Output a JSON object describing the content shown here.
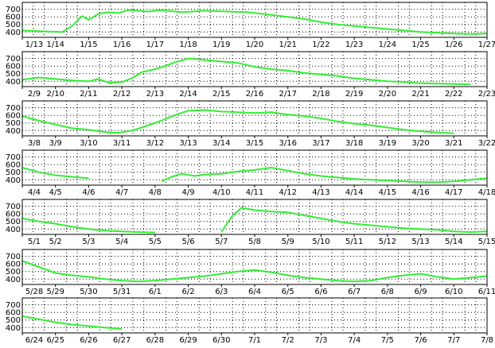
{
  "colors": {
    "line": "#33ee33",
    "frame": "#000000",
    "grid": "#000000",
    "background": "#ffffff"
  },
  "chart_data": [
    {
      "type": "line",
      "y_ticks": [
        400,
        500,
        600,
        700
      ],
      "ylim": [
        330,
        790
      ],
      "grid": true,
      "x_labels": [
        "1/13",
        "1/14",
        "1/15",
        "1/16",
        "1/17",
        "1/18",
        "1/19",
        "1/20",
        "1/21",
        "1/22",
        "1/23",
        "1/24",
        "1/25",
        "1/26",
        "1/27"
      ],
      "series": [
        {
          "x": [
            0,
            0.8,
            1.2,
            1.5,
            1.8,
            2.0,
            2.3,
            2.6,
            2.9,
            3.2,
            3.5,
            3.8,
            4.2,
            4.8,
            5.5,
            6.2,
            6.8,
            7.2,
            7.6,
            8.0,
            8.5,
            9,
            9.5,
            10,
            10.5,
            11,
            11.5,
            12,
            12.5,
            13,
            13.5,
            14
          ],
          "y": [
            420,
            405,
            400,
            480,
            610,
            560,
            640,
            660,
            650,
            690,
            680,
            670,
            690,
            660,
            680,
            670,
            660,
            640,
            620,
            600,
            570,
            530,
            500,
            480,
            460,
            440,
            420,
            400,
            390,
            380,
            375,
            380
          ]
        }
      ]
    },
    {
      "type": "line",
      "y_ticks": [
        400,
        500,
        600,
        700
      ],
      "ylim": [
        330,
        790
      ],
      "grid": true,
      "x_labels": [
        "2/9",
        "2/10",
        "2/11",
        "2/12",
        "2/13",
        "2/14",
        "2/15",
        "2/16",
        "2/17",
        "2/18",
        "2/19",
        "2/20",
        "2/21",
        "2/22",
        "2/23"
      ],
      "series": [
        {
          "x": [
            0,
            0.5,
            1,
            1.5,
            2,
            2.3,
            2.6,
            3,
            3.3,
            3.6,
            4,
            4.3,
            4.6,
            5,
            5.5,
            6,
            6.5,
            7,
            7.5,
            8,
            8.5,
            9,
            9.5,
            10,
            10.5,
            11,
            11.5,
            12,
            12.5,
            13,
            13.5
          ],
          "y": [
            420,
            450,
            430,
            410,
            400,
            430,
            380,
            390,
            440,
            520,
            560,
            600,
            650,
            700,
            680,
            660,
            640,
            590,
            560,
            540,
            510,
            490,
            470,
            440,
            420,
            400,
            390,
            375,
            370,
            365,
            360
          ]
        }
      ]
    },
    {
      "type": "line",
      "y_ticks": [
        400,
        500,
        600,
        700
      ],
      "ylim": [
        330,
        790
      ],
      "grid": true,
      "x_labels": [
        "3/8",
        "3/9",
        "3/10",
        "3/11",
        "3/12",
        "3/13",
        "3/14",
        "3/15",
        "3/16",
        "3/17",
        "3/18",
        "3/19",
        "3/20",
        "3/21",
        "3/22"
      ],
      "series": [
        {
          "x": [
            0,
            0.5,
            1,
            1.5,
            2,
            2.5,
            2.9,
            3.3,
            3.6,
            4,
            4.3,
            4.7,
            5,
            5.5,
            6,
            6.5,
            7,
            7.5,
            8,
            8.5,
            9,
            9.5,
            10,
            10.5,
            11,
            11.5,
            12,
            12.5,
            13
          ],
          "y": [
            590,
            530,
            480,
            430,
            410,
            380,
            370,
            400,
            440,
            500,
            550,
            620,
            660,
            670,
            650,
            640,
            630,
            640,
            610,
            590,
            560,
            520,
            490,
            470,
            440,
            410,
            390,
            375,
            365
          ]
        }
      ]
    },
    {
      "type": "line",
      "y_ticks": [
        400,
        500,
        600,
        700
      ],
      "ylim": [
        330,
        790
      ],
      "grid": true,
      "x_labels": [
        "4/4",
        "4/5",
        "4/6",
        "4/7",
        "4/8",
        "4/9",
        "4/10",
        "4/11",
        "4/12",
        "4/13",
        "4/14",
        "4/15",
        "4/16",
        "4/17",
        "4/18"
      ],
      "series": [
        {
          "x": [
            0,
            0.5,
            1,
            1.5,
            2
          ],
          "y": [
            560,
            500,
            460,
            440,
            420
          ]
        },
        {
          "x": [
            4.2,
            4.5,
            4.8,
            5.2,
            5.5,
            6,
            6.5,
            7,
            7.5,
            8,
            8.5,
            9,
            9.5,
            10,
            10.5,
            11,
            11.5,
            12,
            12.5,
            13,
            13.5,
            14
          ],
          "y": [
            380,
            440,
            480,
            450,
            470,
            480,
            510,
            530,
            560,
            520,
            480,
            450,
            430,
            410,
            400,
            390,
            380,
            370,
            370,
            380,
            400,
            420
          ]
        }
      ]
    },
    {
      "type": "line",
      "y_ticks": [
        400,
        500,
        600,
        700
      ],
      "ylim": [
        330,
        790
      ],
      "grid": true,
      "x_labels": [
        "5/1",
        "5/2",
        "5/3",
        "5/4",
        "5/5",
        "5/6",
        "5/7",
        "5/8",
        "5/9",
        "5/10",
        "5/11",
        "5/12",
        "5/13",
        "5/14",
        "5/15"
      ],
      "series": [
        {
          "x": [
            0,
            0.5,
            1,
            1.5,
            2,
            2.5,
            3,
            3.5,
            4
          ],
          "y": [
            540,
            500,
            470,
            430,
            400,
            380,
            370,
            360,
            355
          ]
        },
        {
          "x": [
            6,
            6.3,
            6.6,
            7,
            7.5,
            8,
            8.5,
            9,
            9.5,
            10,
            10.5,
            11,
            11.5,
            12,
            12.5,
            13,
            13.5,
            14
          ],
          "y": [
            360,
            560,
            680,
            650,
            630,
            620,
            580,
            540,
            500,
            470,
            450,
            430,
            410,
            400,
            390,
            370,
            360,
            370
          ]
        }
      ]
    },
    {
      "type": "line",
      "y_ticks": [
        400,
        500,
        600,
        700
      ],
      "ylim": [
        330,
        790
      ],
      "grid": true,
      "x_labels": [
        "5/28",
        "5/29",
        "5/30",
        "5/31",
        "6/1",
        "6/2",
        "6/3",
        "6/4",
        "6/5",
        "6/6",
        "6/7",
        "6/8",
        "6/9",
        "6/10",
        "6/11"
      ],
      "series": [
        {
          "x": [
            0,
            0.5,
            1,
            1.5,
            2,
            2.5,
            3,
            3.5,
            4,
            4.5,
            5,
            5.5,
            6,
            6.5,
            7,
            7.5,
            8,
            8.5,
            9,
            9.5,
            10,
            10.5,
            11,
            11.5,
            12,
            12.5,
            13,
            13.5,
            14
          ],
          "y": [
            640,
            560,
            480,
            450,
            430,
            400,
            380,
            370,
            380,
            400,
            420,
            440,
            470,
            500,
            520,
            490,
            450,
            420,
            400,
            380,
            370,
            380,
            420,
            450,
            470,
            430,
            400,
            420,
            440
          ]
        }
      ]
    },
    {
      "type": "line",
      "y_ticks": [
        400,
        500,
        600,
        700
      ],
      "ylim": [
        330,
        790
      ],
      "grid": true,
      "x_labels": [
        "6/24",
        "6/25",
        "6/26",
        "6/27",
        "6/28",
        "6/29",
        "6/30",
        "7/1",
        "7/2",
        "7/3",
        "7/4",
        "7/5",
        "7/6",
        "7/7",
        "7/8"
      ],
      "series": [
        {
          "x": [
            0,
            0.5,
            1,
            1.5,
            2,
            2.5,
            3
          ],
          "y": [
            550,
            510,
            470,
            440,
            420,
            400,
            380
          ]
        }
      ]
    }
  ]
}
